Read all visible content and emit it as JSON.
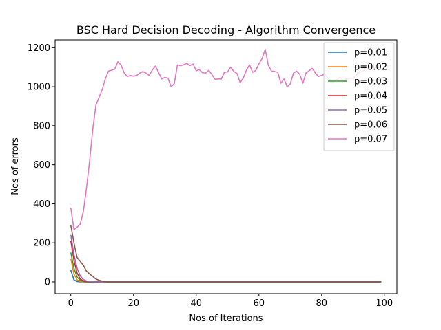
{
  "chart_data": {
    "type": "line",
    "title": "BSC Hard Decision Decoding - Algorithm Convergence",
    "xlabel": "Nos of Iterations",
    "ylabel": "Nos of errors",
    "xlim": [
      -5,
      104
    ],
    "ylim": [
      -60,
      1240
    ],
    "xticks": [
      0,
      20,
      40,
      60,
      80,
      100
    ],
    "yticks": [
      0,
      200,
      400,
      600,
      800,
      1000,
      1200
    ],
    "grid": false,
    "legend_position": "top-right",
    "x": [
      0,
      1,
      2,
      3,
      4,
      5,
      6,
      7,
      8,
      9,
      10,
      11,
      12,
      13,
      14,
      15,
      16,
      17,
      18,
      19,
      20,
      21,
      22,
      23,
      24,
      25,
      26,
      27,
      28,
      29,
      30,
      31,
      32,
      33,
      34,
      35,
      36,
      37,
      38,
      39,
      40,
      41,
      42,
      43,
      44,
      45,
      46,
      47,
      48,
      49,
      50,
      51,
      52,
      53,
      54,
      55,
      56,
      57,
      58,
      59,
      60,
      61,
      62,
      63,
      64,
      65,
      66,
      67,
      68,
      69,
      70,
      71,
      72,
      73,
      74,
      75,
      76,
      77,
      78,
      79,
      80,
      81,
      82,
      83,
      84,
      85,
      86,
      87,
      88,
      89,
      90,
      91,
      92,
      93,
      94,
      95,
      96,
      97,
      98,
      99
    ],
    "series": [
      {
        "name": "p=0.01",
        "color": "#1f77b4",
        "values": [
          60,
          10,
          2,
          0,
          0,
          0,
          0,
          0,
          0,
          0,
          0,
          0,
          0,
          0,
          0,
          0,
          0,
          0,
          0,
          0,
          0,
          0,
          0,
          0,
          0,
          0,
          0,
          0,
          0,
          0,
          0,
          0,
          0,
          0,
          0,
          0,
          0,
          0,
          0,
          0,
          0,
          0,
          0,
          0,
          0,
          0,
          0,
          0,
          0,
          0,
          0,
          0,
          0,
          0,
          0,
          0,
          0,
          0,
          0,
          0,
          0,
          0,
          0,
          0,
          0,
          0,
          0,
          0,
          0,
          0,
          0,
          0,
          0,
          0,
          0,
          0,
          0,
          0,
          0,
          0,
          0,
          0,
          0,
          0,
          0,
          0,
          0,
          0,
          0,
          0,
          0,
          0,
          0,
          0,
          0,
          0,
          0,
          0,
          0,
          0
        ]
      },
      {
        "name": "p=0.02",
        "color": "#ff7f0e",
        "values": [
          120,
          40,
          10,
          2,
          0,
          0,
          0,
          0,
          0,
          0,
          0,
          0,
          0,
          0,
          0,
          0,
          0,
          0,
          0,
          0,
          0,
          0,
          0,
          0,
          0,
          0,
          0,
          0,
          0,
          0,
          0,
          0,
          0,
          0,
          0,
          0,
          0,
          0,
          0,
          0,
          0,
          0,
          0,
          0,
          0,
          0,
          0,
          0,
          0,
          0,
          0,
          0,
          0,
          0,
          0,
          0,
          0,
          0,
          0,
          0,
          0,
          0,
          0,
          0,
          0,
          0,
          0,
          0,
          0,
          0,
          0,
          0,
          0,
          0,
          0,
          0,
          0,
          0,
          0,
          0,
          0,
          0,
          0,
          0,
          0,
          0,
          0,
          0,
          0,
          0,
          0,
          0,
          0,
          0,
          0,
          0,
          0,
          0,
          0,
          0
        ]
      },
      {
        "name": "p=0.03",
        "color": "#2ca02c",
        "values": [
          150,
          70,
          25,
          8,
          2,
          0,
          0,
          0,
          0,
          0,
          0,
          0,
          0,
          0,
          0,
          0,
          0,
          0,
          0,
          0,
          0,
          0,
          0,
          0,
          0,
          0,
          0,
          0,
          0,
          0,
          0,
          0,
          0,
          0,
          0,
          0,
          0,
          0,
          0,
          0,
          0,
          0,
          0,
          0,
          0,
          0,
          0,
          0,
          0,
          0,
          0,
          0,
          0,
          0,
          0,
          0,
          0,
          0,
          0,
          0,
          0,
          0,
          0,
          0,
          0,
          0,
          0,
          0,
          0,
          0,
          0,
          0,
          0,
          0,
          0,
          0,
          0,
          0,
          0,
          0,
          0,
          0,
          0,
          0,
          0,
          0,
          0,
          0,
          0,
          0,
          0,
          0,
          0,
          0,
          0,
          0,
          0,
          0,
          0,
          0
        ]
      },
      {
        "name": "p=0.04",
        "color": "#d62728",
        "values": [
          210,
          110,
          45,
          15,
          5,
          2,
          0,
          0,
          0,
          0,
          0,
          0,
          0,
          0,
          0,
          0,
          0,
          0,
          0,
          0,
          0,
          0,
          0,
          0,
          0,
          0,
          0,
          0,
          0,
          0,
          0,
          0,
          0,
          0,
          0,
          0,
          0,
          0,
          0,
          0,
          0,
          0,
          0,
          0,
          0,
          0,
          0,
          0,
          0,
          0,
          0,
          0,
          0,
          0,
          0,
          0,
          0,
          0,
          0,
          0,
          0,
          0,
          0,
          0,
          0,
          0,
          0,
          0,
          0,
          0,
          0,
          0,
          0,
          0,
          0,
          0,
          0,
          0,
          0,
          0,
          0,
          0,
          0,
          0,
          0,
          0,
          0,
          0,
          0,
          0,
          0,
          0,
          0,
          0,
          0,
          0,
          0,
          0,
          0,
          0
        ]
      },
      {
        "name": "p=0.05",
        "color": "#9467bd",
        "values": [
          240,
          140,
          70,
          30,
          12,
          5,
          2,
          0,
          0,
          0,
          0,
          0,
          0,
          0,
          0,
          0,
          0,
          0,
          0,
          0,
          0,
          0,
          0,
          0,
          0,
          0,
          0,
          0,
          0,
          0,
          0,
          0,
          0,
          0,
          0,
          0,
          0,
          0,
          0,
          0,
          0,
          0,
          0,
          0,
          0,
          0,
          0,
          0,
          0,
          0,
          0,
          0,
          0,
          0,
          0,
          0,
          0,
          0,
          0,
          0,
          0,
          0,
          0,
          0,
          0,
          0,
          0,
          0,
          0,
          0,
          0,
          0,
          0,
          0,
          0,
          0,
          0,
          0,
          0,
          0,
          0,
          0,
          0,
          0,
          0,
          0,
          0,
          0,
          0,
          0,
          0,
          0,
          0,
          0,
          0,
          0,
          0,
          0,
          0,
          0
        ]
      },
      {
        "name": "p=0.06",
        "color": "#8c564b",
        "values": [
          290,
          200,
          125,
          105,
          85,
          55,
          40,
          28,
          15,
          8,
          4,
          2,
          0,
          0,
          0,
          0,
          0,
          0,
          0,
          0,
          0,
          0,
          0,
          0,
          0,
          0,
          0,
          0,
          0,
          0,
          0,
          0,
          0,
          0,
          0,
          0,
          0,
          0,
          0,
          0,
          0,
          0,
          0,
          0,
          0,
          0,
          0,
          0,
          0,
          0,
          0,
          0,
          0,
          0,
          0,
          0,
          0,
          0,
          0,
          0,
          0,
          0,
          0,
          0,
          0,
          0,
          0,
          0,
          0,
          0,
          0,
          0,
          0,
          0,
          0,
          0,
          0,
          0,
          0,
          0,
          0,
          0,
          0,
          0,
          0,
          0,
          0,
          0,
          0,
          0,
          0,
          0,
          0,
          0,
          0,
          0,
          0,
          0,
          0,
          0
        ]
      },
      {
        "name": "p=0.07",
        "color": "#e377c2",
        "values": [
          380,
          268,
          280,
          295,
          360,
          480,
          620,
          780,
          905,
          945,
          985,
          1040,
          1080,
          1085,
          1090,
          1128,
          1112,
          1072,
          1052,
          1058,
          1054,
          1058,
          1070,
          1078,
          1070,
          1058,
          1086,
          1106,
          1072,
          1040,
          1048,
          1044,
          1000,
          1016,
          1112,
          1108,
          1112,
          1120,
          1108,
          1116,
          1082,
          1088,
          1072,
          1070,
          1084,
          1062,
          1038,
          1040,
          1040,
          1074,
          1076,
          1100,
          1078,
          1068,
          1022,
          1044,
          1085,
          1112,
          1074,
          1084,
          1118,
          1144,
          1192,
          1110,
          1080,
          1078,
          1074,
          1018,
          1040,
          1000,
          1014,
          1070,
          1080,
          1064,
          1018,
          1070,
          1082,
          1094,
          1070,
          1052,
          1058,
          1064,
          1044,
          1022,
          1024,
          1040,
          1048,
          1028,
          1040,
          1044,
          1044,
          1060,
          1072,
          1080,
          1088,
          1092,
          1094,
          1096,
          1098,
          1100
        ]
      }
    ]
  }
}
